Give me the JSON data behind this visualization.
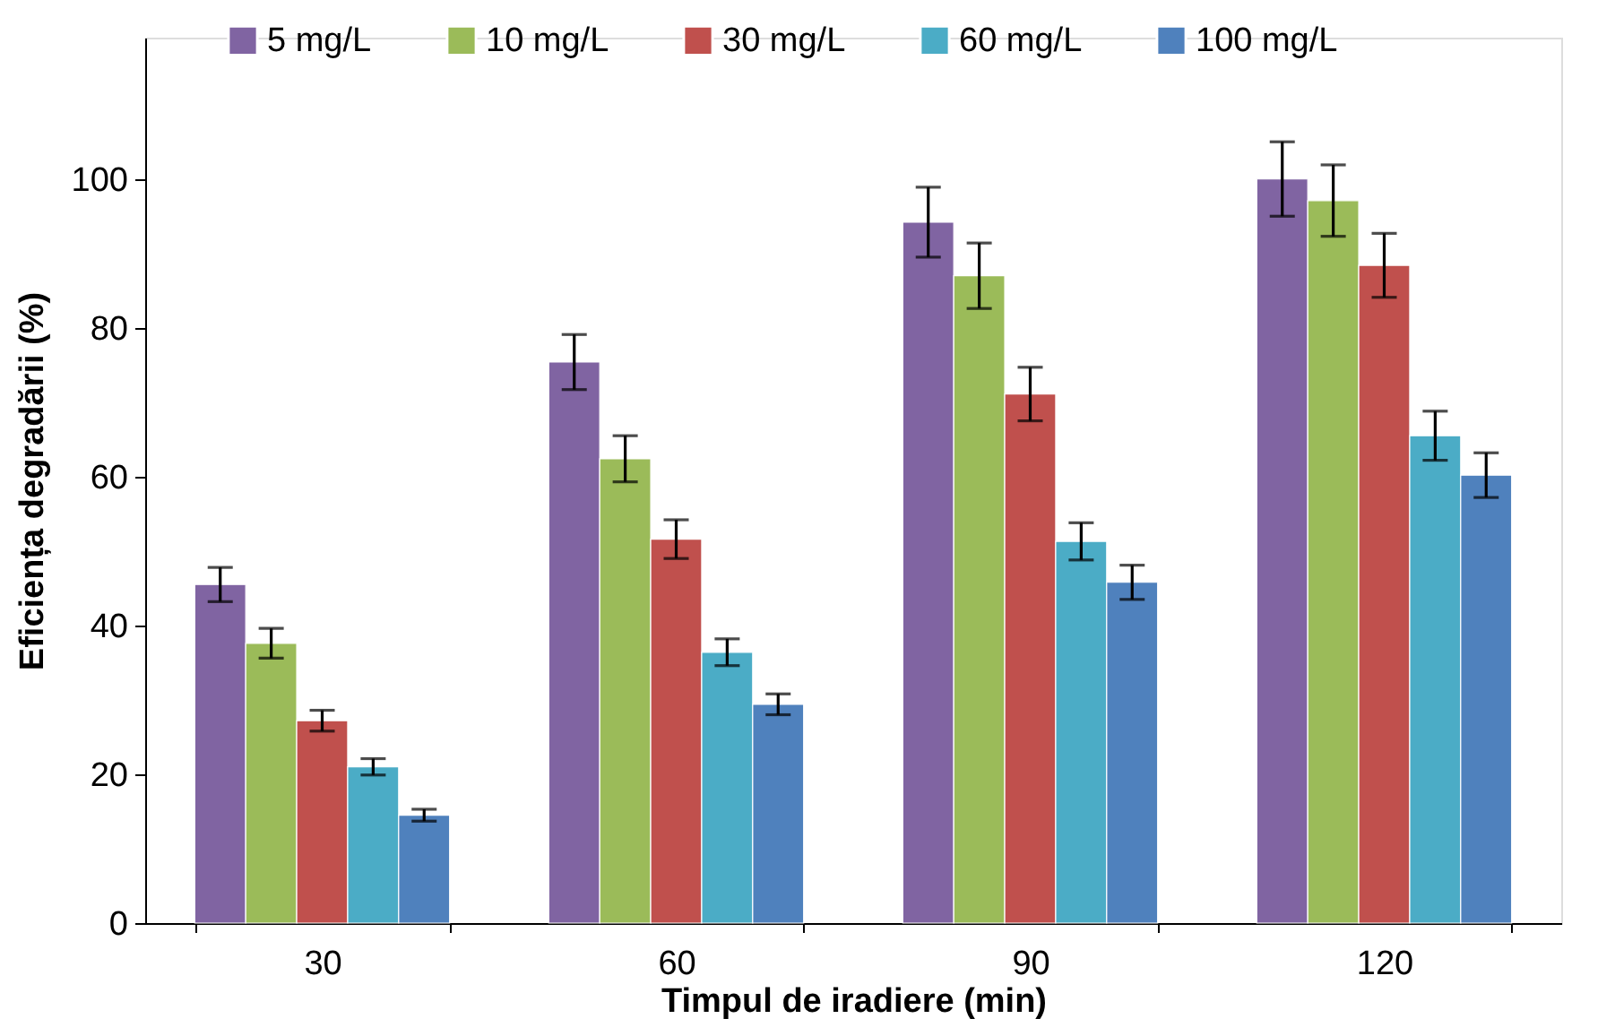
{
  "chart_data": {
    "type": "bar",
    "xlabel": "Timpul de iradiere (min)",
    "ylabel": "Eficiența degradării (%)",
    "categories": [
      "30",
      "60",
      "90",
      "120"
    ],
    "ylim": [
      0,
      119
    ],
    "yticks": [
      0,
      20,
      40,
      60,
      80,
      100
    ],
    "grid": false,
    "legend": "top",
    "series": [
      {
        "name": "5 mg/L",
        "color": "#8064a2",
        "values": [
          45.5,
          75.4,
          94.2,
          100
        ],
        "errors": [
          2.3,
          3.7,
          4.7,
          5
        ]
      },
      {
        "name": "10 mg/L",
        "color": "#9bbb59",
        "values": [
          37.6,
          62.4,
          87,
          97.1
        ],
        "errors": [
          2,
          3.1,
          4.4,
          4.8
        ]
      },
      {
        "name": "30 mg/L",
        "color": "#c0504d",
        "values": [
          27.2,
          51.6,
          71.1,
          88.4
        ],
        "errors": [
          1.4,
          2.6,
          3.6,
          4.3
        ]
      },
      {
        "name": "60 mg/L",
        "color": "#4bacc6",
        "values": [
          21,
          36.4,
          51.3,
          65.5
        ],
        "errors": [
          1.1,
          1.8,
          2.5,
          3.3
        ]
      },
      {
        "name": "100 mg/L",
        "color": "#4f81bd",
        "values": [
          14.5,
          29.4,
          45.8,
          60.2
        ],
        "errors": [
          0.8,
          1.4,
          2.3,
          3
        ]
      }
    ]
  }
}
